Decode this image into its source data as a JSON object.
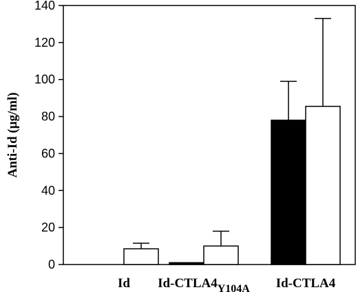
{
  "chart_data": {
    "type": "bar",
    "title": "",
    "xlabel": "",
    "ylabel": "Anti-Id (μg/ml)",
    "ylim": [
      0,
      140
    ],
    "yticks": [
      0,
      20,
      40,
      60,
      80,
      100,
      120,
      140
    ],
    "grid": false,
    "legend": "none",
    "categories": [
      {
        "base": "Id",
        "subscript": ""
      },
      {
        "base": "Id-CTLA4",
        "subscript": "Y104A"
      },
      {
        "base": "Id-CTLA4",
        "subscript": ""
      }
    ],
    "series": [
      {
        "fill": "#000000",
        "values": [
          0,
          1,
          78
        ],
        "errors": [
          0,
          0,
          21
        ]
      },
      {
        "fill": "#ffffff",
        "values": [
          8.5,
          10,
          85.5
        ],
        "errors": [
          3,
          8,
          47.5
        ]
      }
    ]
  }
}
